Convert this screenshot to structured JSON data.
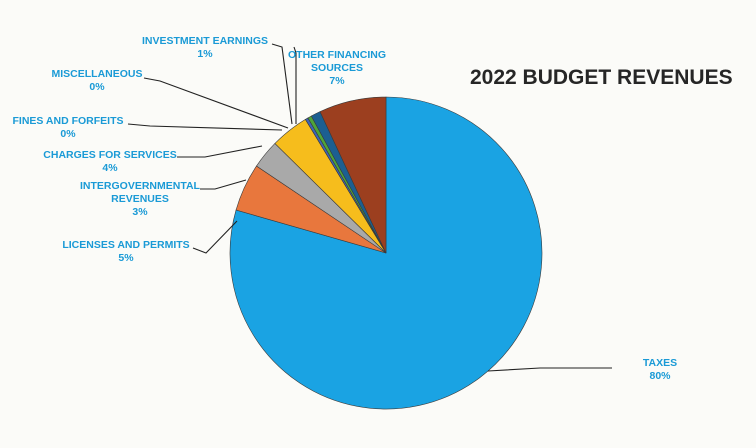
{
  "chart_data": {
    "type": "pie",
    "title": "2022 BUDGET REVENUES",
    "slices": [
      {
        "key": "taxes",
        "label_lines": [
          "TAXES"
        ],
        "pct_label": "80%",
        "value": 80,
        "color": "#1aa3e3"
      },
      {
        "key": "licenses",
        "label_lines": [
          "LICENSES AND PERMITS"
        ],
        "pct_label": "5%",
        "value": 5,
        "color": "#e8773d"
      },
      {
        "key": "intergov",
        "label_lines": [
          "INTERGOVERNMENTAL",
          "REVENUES"
        ],
        "pct_label": "3%",
        "value": 3,
        "color": "#a9a9a9"
      },
      {
        "key": "charges",
        "label_lines": [
          "CHARGES FOR SERVICES"
        ],
        "pct_label": "4%",
        "value": 4,
        "color": "#f6bd1c"
      },
      {
        "key": "fines",
        "label_lines": [
          "FINES AND FORFEITS"
        ],
        "pct_label": "0%",
        "value": 0.3,
        "color": "#3d64b8"
      },
      {
        "key": "misc",
        "label_lines": [
          "MISCELLANEOUS"
        ],
        "pct_label": "0%",
        "value": 0.4,
        "color": "#4ea53a"
      },
      {
        "key": "investment",
        "label_lines": [
          "INVESTMENT EARNINGS"
        ],
        "pct_label": "1%",
        "value": 1,
        "color": "#1c5f91"
      },
      {
        "key": "other",
        "label_lines": [
          "OTHER FINANCING",
          "SOURCES"
        ],
        "pct_label": "7%",
        "value": 7,
        "color": "#9c3f1f"
      }
    ]
  }
}
